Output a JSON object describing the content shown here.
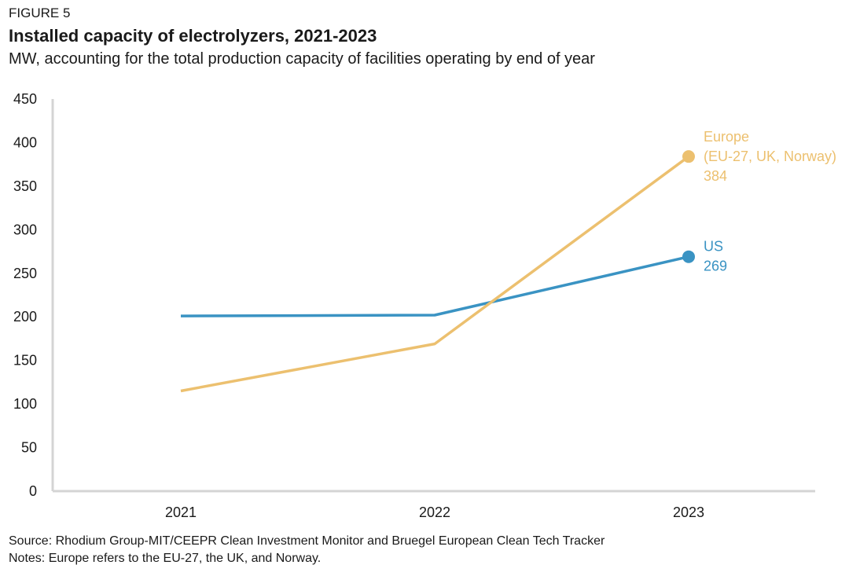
{
  "figure": {
    "label": "FIGURE 5",
    "title": "Installed capacity of electrolyzers, 2021-2023",
    "subtitle": "MW, accounting for the total production capacity of facilities operating by end of year",
    "source": "Source: Rhodium Group-MIT/CEEPR Clean Investment Monitor and Bruegel European Clean Tech Tracker",
    "notes": "Notes: Europe refers to the EU-27, the UK, and Norway."
  },
  "chart_data": {
    "type": "line",
    "categories": [
      "2021",
      "2022",
      "2023"
    ],
    "ylim": [
      0,
      450
    ],
    "yticks": [
      0,
      50,
      100,
      150,
      200,
      250,
      300,
      350,
      400,
      450
    ],
    "grid": false,
    "series": [
      {
        "name": "US",
        "values": [
          201,
          202,
          269
        ],
        "color": "#3a93c3",
        "end_label": [
          "US",
          "269"
        ]
      },
      {
        "name": "Europe (EU-27, UK, Norway)",
        "values": [
          115,
          169,
          384
        ],
        "color": "#ecc06f",
        "end_label": [
          "Europe",
          "(EU-27, UK, Norway)",
          "384"
        ]
      }
    ]
  }
}
